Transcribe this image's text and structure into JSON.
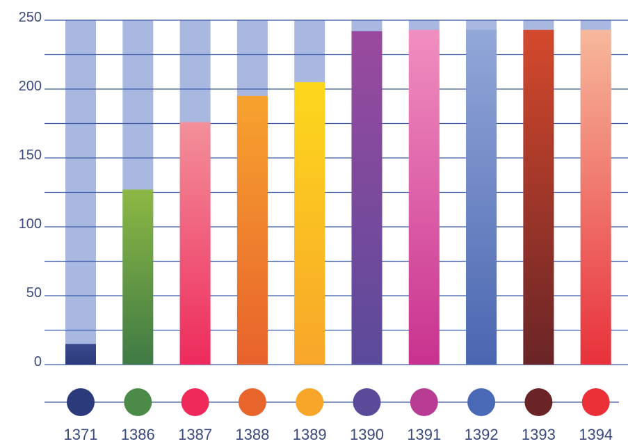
{
  "chart_data": {
    "type": "bar",
    "title": "",
    "xlabel": "",
    "ylabel": "",
    "ylim": [
      0,
      250
    ],
    "yticks": [
      0,
      50,
      100,
      150,
      200,
      250
    ],
    "grid": true,
    "background_bar_max": 250,
    "categories": [
      "1371",
      "1386",
      "1387",
      "1388",
      "1389",
      "1390",
      "1391",
      "1392",
      "1393",
      "1394"
    ],
    "values": [
      15,
      127,
      176,
      195,
      205,
      242,
      243,
      243,
      243,
      243
    ],
    "bar_colors": [
      [
        "#2b3a7a",
        "#3a4a8e"
      ],
      [
        "#3f7a45",
        "#8cb843"
      ],
      [
        "#ee2a5c",
        "#f3909a"
      ],
      [
        "#e8622c",
        "#f7a32e"
      ],
      [
        "#f8a62a",
        "#fdd81c"
      ],
      [
        "#5a4a9a",
        "#9a4a9e"
      ],
      [
        "#c8328f",
        "#f18fc0"
      ],
      [
        "#4a66b0",
        "#93a8d9"
      ],
      [
        "#6a2426",
        "#d4492c"
      ],
      [
        "#e8313a",
        "#f7b89c"
      ]
    ],
    "marker_colors": [
      "#2b3a7a",
      "#4b8a47",
      "#ef2a5a",
      "#e8662c",
      "#f8a62a",
      "#5a4a9a",
      "#b83c94",
      "#4a6ab8",
      "#6a2426",
      "#ec3038"
    ],
    "background_bar_color": "#a9b8e0",
    "grid_color": "#3a5aa8",
    "tick_color": "#3a4a7e"
  }
}
